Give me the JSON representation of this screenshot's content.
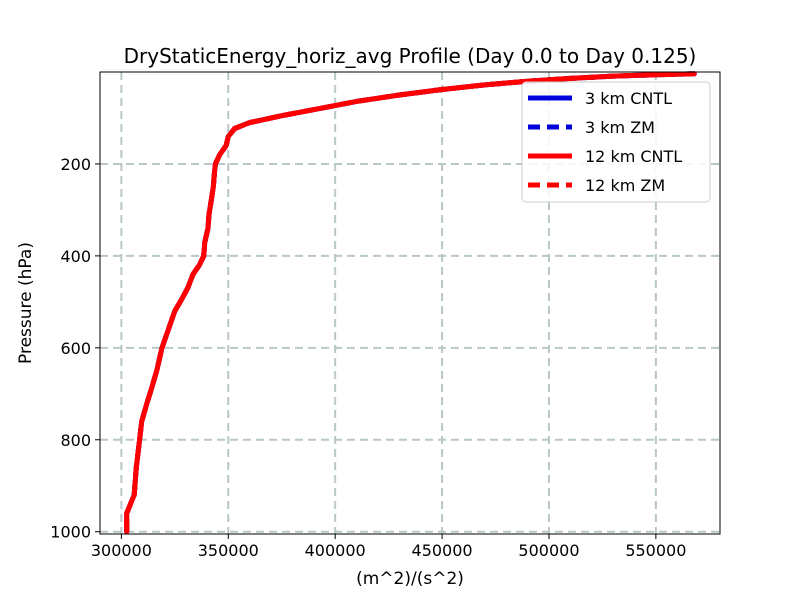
{
  "chart_data": {
    "type": "line",
    "title": "DryStaticEnergy_horiz_avg Profile (Day 0.0 to Day 0.125)",
    "xlabel": "(m^2)/(s^2)",
    "ylabel": "Pressure (hPa)",
    "xlim": [
      290000,
      580000
    ],
    "ylim": [
      1005,
      0
    ],
    "y_inverted": true,
    "x_ticks": [
      300000,
      350000,
      400000,
      450000,
      500000,
      550000
    ],
    "y_ticks": [
      200,
      400,
      600,
      800,
      1000
    ],
    "grid": true,
    "legend_position": "top-right",
    "series": [
      {
        "name": "3 km CNTL",
        "color": "#0000dd",
        "linestyle": "solid",
        "points": [
          [
            302500,
            1000
          ],
          [
            302500,
            960
          ],
          [
            306000,
            920
          ],
          [
            307000,
            860
          ],
          [
            308500,
            800
          ],
          [
            309500,
            760
          ],
          [
            312000,
            720
          ],
          [
            314000,
            690
          ],
          [
            316500,
            650
          ],
          [
            319000,
            600
          ],
          [
            322000,
            560
          ],
          [
            325000,
            520
          ],
          [
            327500,
            500
          ],
          [
            331000,
            470
          ],
          [
            333500,
            440
          ],
          [
            336500,
            420
          ],
          [
            338500,
            400
          ],
          [
            339000,
            370
          ],
          [
            340500,
            340
          ],
          [
            341000,
            310
          ],
          [
            342000,
            280
          ],
          [
            343000,
            250
          ],
          [
            343500,
            220
          ],
          [
            344000,
            200
          ],
          [
            346000,
            180
          ],
          [
            349000,
            160
          ],
          [
            350000,
            140
          ],
          [
            353000,
            123
          ],
          [
            360000,
            110
          ],
          [
            375000,
            95
          ],
          [
            392000,
            80
          ],
          [
            410000,
            64
          ],
          [
            430000,
            50
          ],
          [
            450000,
            38
          ],
          [
            470000,
            28
          ],
          [
            490000,
            20
          ],
          [
            510000,
            14
          ],
          [
            530000,
            9
          ],
          [
            550000,
            6
          ],
          [
            568000,
            4
          ]
        ]
      },
      {
        "name": "3 km ZM",
        "color": "#0000dd",
        "linestyle": "dashed",
        "points": [
          [
            302500,
            1000
          ],
          [
            302500,
            960
          ],
          [
            306000,
            920
          ],
          [
            307000,
            860
          ],
          [
            308500,
            800
          ],
          [
            309500,
            760
          ],
          [
            312000,
            720
          ],
          [
            314000,
            690
          ],
          [
            316500,
            650
          ],
          [
            319000,
            600
          ],
          [
            322000,
            560
          ],
          [
            325000,
            520
          ],
          [
            327500,
            500
          ],
          [
            331000,
            470
          ],
          [
            333500,
            440
          ],
          [
            336500,
            420
          ],
          [
            338500,
            400
          ],
          [
            339000,
            370
          ],
          [
            340500,
            340
          ],
          [
            341000,
            310
          ],
          [
            342000,
            280
          ],
          [
            343000,
            250
          ],
          [
            343500,
            220
          ],
          [
            344000,
            200
          ],
          [
            346000,
            180
          ],
          [
            349000,
            160
          ],
          [
            350000,
            140
          ],
          [
            353000,
            123
          ],
          [
            360000,
            110
          ],
          [
            375000,
            95
          ],
          [
            392000,
            80
          ],
          [
            410000,
            64
          ],
          [
            430000,
            50
          ],
          [
            450000,
            38
          ],
          [
            470000,
            28
          ],
          [
            490000,
            20
          ],
          [
            510000,
            14
          ],
          [
            530000,
            9
          ],
          [
            550000,
            6
          ],
          [
            568000,
            4
          ]
        ]
      },
      {
        "name": "12 km CNTL",
        "color": "#ff0000",
        "linestyle": "solid",
        "points": [
          [
            302500,
            1000
          ],
          [
            302500,
            960
          ],
          [
            306000,
            920
          ],
          [
            307000,
            860
          ],
          [
            308500,
            800
          ],
          [
            309500,
            760
          ],
          [
            312000,
            720
          ],
          [
            314000,
            690
          ],
          [
            316500,
            650
          ],
          [
            319000,
            600
          ],
          [
            322000,
            560
          ],
          [
            325000,
            520
          ],
          [
            327500,
            500
          ],
          [
            331000,
            470
          ],
          [
            333500,
            440
          ],
          [
            336500,
            420
          ],
          [
            338500,
            400
          ],
          [
            339000,
            370
          ],
          [
            340500,
            340
          ],
          [
            341000,
            310
          ],
          [
            342000,
            280
          ],
          [
            343000,
            250
          ],
          [
            343500,
            220
          ],
          [
            344000,
            200
          ],
          [
            346000,
            180
          ],
          [
            349000,
            160
          ],
          [
            350000,
            140
          ],
          [
            353000,
            123
          ],
          [
            360000,
            110
          ],
          [
            375000,
            95
          ],
          [
            392000,
            80
          ],
          [
            410000,
            64
          ],
          [
            430000,
            50
          ],
          [
            450000,
            38
          ],
          [
            470000,
            28
          ],
          [
            490000,
            20
          ],
          [
            510000,
            14
          ],
          [
            530000,
            9
          ],
          [
            550000,
            6
          ],
          [
            568000,
            4
          ]
        ]
      },
      {
        "name": "12 km ZM",
        "color": "#ff0000",
        "linestyle": "dashed",
        "points": [
          [
            302500,
            1000
          ],
          [
            302500,
            960
          ],
          [
            306000,
            920
          ],
          [
            307000,
            860
          ],
          [
            308500,
            800
          ],
          [
            309500,
            760
          ],
          [
            312000,
            720
          ],
          [
            314000,
            690
          ],
          [
            316500,
            650
          ],
          [
            319000,
            600
          ],
          [
            322000,
            560
          ],
          [
            325000,
            520
          ],
          [
            327500,
            500
          ],
          [
            331000,
            470
          ],
          [
            333500,
            440
          ],
          [
            336500,
            420
          ],
          [
            338500,
            400
          ],
          [
            339000,
            370
          ],
          [
            340500,
            340
          ],
          [
            341000,
            310
          ],
          [
            342000,
            280
          ],
          [
            343000,
            250
          ],
          [
            343500,
            220
          ],
          [
            344000,
            200
          ],
          [
            346000,
            180
          ],
          [
            349000,
            160
          ],
          [
            350000,
            140
          ],
          [
            353000,
            123
          ],
          [
            360000,
            110
          ],
          [
            375000,
            95
          ],
          [
            392000,
            80
          ],
          [
            410000,
            64
          ],
          [
            430000,
            50
          ],
          [
            450000,
            38
          ],
          [
            470000,
            28
          ],
          [
            490000,
            20
          ],
          [
            510000,
            14
          ],
          [
            530000,
            9
          ],
          [
            550000,
            6
          ],
          [
            568000,
            4
          ]
        ]
      }
    ]
  }
}
